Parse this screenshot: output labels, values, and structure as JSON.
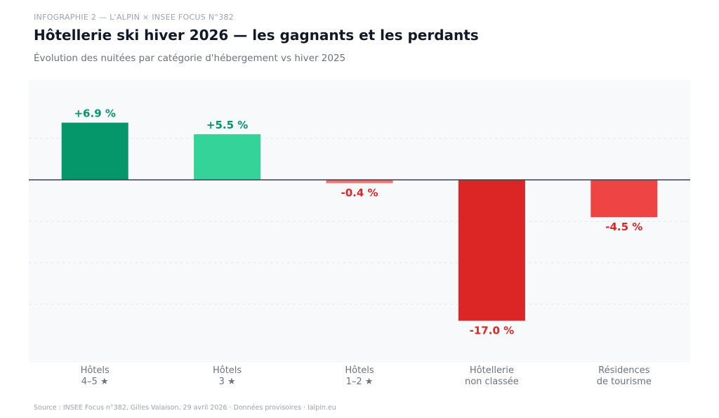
{
  "kicker": "INFOGRAPHIE 2  —  L'ALPIN × INSEE FOCUS N°382",
  "title": "Hôtellerie ski hiver 2026 — les gagnants et les perdants",
  "subtitle": "Évolution des nuitées par catégorie d'hébergement vs hiver 2025",
  "footer": "Source : INSEE Focus n°382, Gilles Valaison, 29 avril 2026  ·  Données provisoires  ·  lalpin.eu",
  "chart_data": {
    "type": "bar",
    "categories": [
      [
        "Hôtels",
        "4–5 ★"
      ],
      [
        "Hôtels",
        "3 ★"
      ],
      [
        "Hôtels",
        "1–2 ★"
      ],
      [
        "Hôtellerie",
        "non classée"
      ],
      [
        "Résidences",
        "de tourisme"
      ]
    ],
    "values": [
      6.9,
      5.5,
      -0.4,
      -17.0,
      -4.5
    ],
    "labels": [
      "+6.9 %",
      "+5.5 %",
      "-0.4 %",
      "-17.0 %",
      "-4.5 %"
    ],
    "bar_colors": [
      "#059669",
      "#34d399",
      "#f87171",
      "#dc2626",
      "#ef4444"
    ],
    "label_colors": {
      "positive": "#059669",
      "negative": "#dc2626"
    },
    "ylim": [
      -22,
      12
    ],
    "gridlines": [
      5,
      -5,
      -10,
      -15
    ],
    "grid": true
  }
}
